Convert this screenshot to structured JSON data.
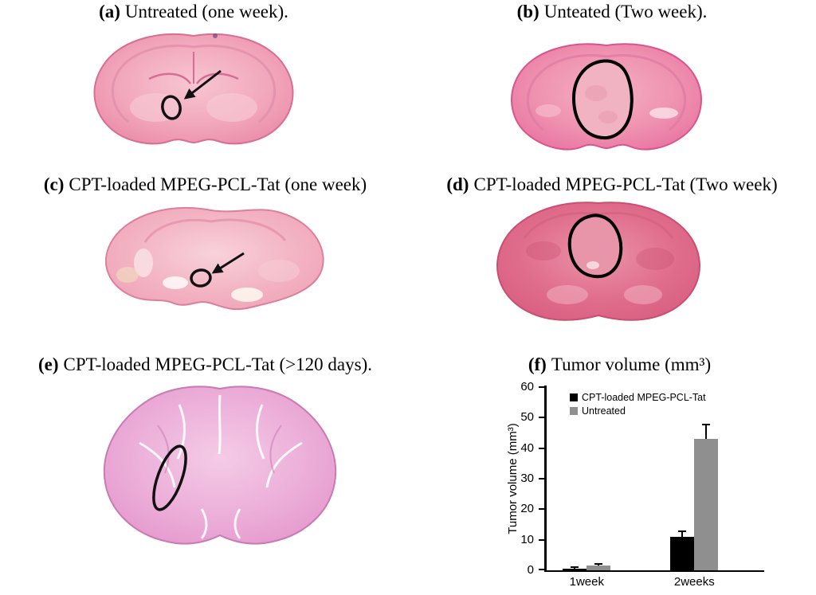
{
  "panels": {
    "a": {
      "label": "(a)",
      "title": "Untreated (one week)."
    },
    "b": {
      "label": "(b)",
      "title": "Unteated (Two week)."
    },
    "c": {
      "label": "(c)",
      "title": "CPT-loaded MPEG-PCL-Tat (one week)"
    },
    "d": {
      "label": "(d)",
      "title": "CPT-loaded MPEG-PCL-Tat (Two week)"
    },
    "e": {
      "label": "(e)",
      "title": "CPT-loaded MPEG-PCL-Tat (>120 days)."
    },
    "f": {
      "label": "(f)",
      "title": "Tumor volume (mm³)"
    }
  },
  "chart_data": {
    "type": "bar",
    "title": "Tumor volume (mm³)",
    "categories": [
      "1week",
      "2weeks"
    ],
    "series": [
      {
        "name": "CPT-loaded MPEG-PCL-Tat",
        "color": "#000000",
        "values": [
          0.6,
          11
        ],
        "errors": [
          0.3,
          1.5
        ]
      },
      {
        "name": "Untreated",
        "color": "#8f8f8f",
        "values": [
          1.5,
          43
        ],
        "errors": [
          0.4,
          4.5
        ]
      }
    ],
    "ylabel": "Tumor volume (mm³)",
    "ylim": [
      0,
      60
    ],
    "yticks": [
      0,
      10,
      20,
      30,
      40,
      50,
      60
    ],
    "legend_position": "top-left-inside",
    "grid": false
  }
}
